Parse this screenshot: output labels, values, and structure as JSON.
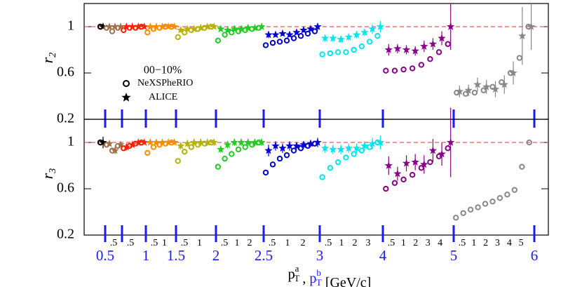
{
  "chart_data": [
    {
      "type": "scatter",
      "ylabel": {
        "base": "r",
        "sub": "2"
      },
      "ylim": [
        0.2,
        1.2
      ],
      "yticks": [
        0.2,
        0.6,
        1
      ],
      "reference_line": 1,
      "legend": {
        "title": "00−10%",
        "entries": [
          "NeXSPheRIO",
          "ALICE"
        ]
      },
      "groups": [
        {
          "color": "#000000",
          "nexspherio": [
            1.0
          ],
          "alice": [
            1.0
          ],
          "alice_errors": [
            0.01
          ]
        },
        {
          "color": "#a0704a",
          "nexspherio": [
            0.99,
            0.96,
            0.99
          ],
          "alice": [
            1.0,
            1.0,
            1.0
          ],
          "alice_errors": [
            0.01,
            0.01,
            0.01
          ]
        },
        {
          "color": "#ff2200",
          "nexspherio": [
            0.97,
            0.99,
            0.99,
            1.0
          ],
          "alice": [
            1.0,
            1.0,
            1.0,
            1.0
          ],
          "alice_errors": [
            0.02,
            0.01,
            0.01,
            0.01
          ]
        },
        {
          "color": "#ff8c00",
          "nexspherio": [
            0.95,
            0.98,
            0.99,
            1.0,
            1.0
          ],
          "alice": [
            1.0,
            1.0,
            1.0,
            1.0,
            1.0
          ],
          "alice_errors": [
            0.02,
            0.01,
            0.01,
            0.01,
            0.01
          ]
        },
        {
          "color": "#b3b300",
          "nexspherio": [
            0.91,
            0.95,
            0.97,
            0.98,
            0.99,
            1.0
          ],
          "alice": [
            0.97,
            0.98,
            0.98,
            0.99,
            1.0,
            1.0
          ],
          "alice_errors": [
            0.02,
            0.02,
            0.01,
            0.01,
            0.01,
            0.01
          ]
        },
        {
          "color": "#22cc22",
          "nexspherio": [
            0.88,
            0.93,
            0.95,
            0.96,
            0.97,
            0.98,
            0.99
          ],
          "alice": [
            0.98,
            0.97,
            0.98,
            0.98,
            0.99,
            0.99,
            1.0
          ],
          "alice_errors": [
            0.02,
            0.02,
            0.02,
            0.02,
            0.02,
            0.02,
            0.02
          ]
        },
        {
          "color": "#0000cc",
          "nexspherio": [
            0.84,
            0.86,
            0.87,
            0.88,
            0.9,
            0.92,
            0.94,
            0.96
          ],
          "alice": [
            0.93,
            0.93,
            0.94,
            0.93,
            0.95,
            0.97,
            0.98,
            1.0
          ],
          "alice_errors": [
            0.03,
            0.02,
            0.02,
            0.02,
            0.02,
            0.02,
            0.02,
            0.03
          ]
        },
        {
          "color": "#00e5ee",
          "nexspherio": [
            0.76,
            0.77,
            0.78,
            0.78,
            0.8,
            0.83,
            0.87,
            0.92
          ],
          "alice": [
            0.9,
            0.9,
            0.89,
            0.91,
            0.93,
            0.95,
            0.98,
            1.0
          ],
          "alice_errors": [
            0.03,
            0.03,
            0.03,
            0.03,
            0.03,
            0.03,
            0.04,
            0.05
          ]
        },
        {
          "color": "#880088",
          "nexspherio": [
            0.62,
            0.62,
            0.63,
            0.64,
            0.67,
            0.72,
            0.78,
            0.85
          ],
          "alice": [
            0.8,
            0.81,
            0.8,
            0.79,
            0.83,
            0.85,
            0.9,
            1.0
          ],
          "alice_errors": [
            0.05,
            0.04,
            0.04,
            0.04,
            0.05,
            0.05,
            0.06,
            0.2
          ]
        },
        {
          "color": "#888888",
          "nexspherio": [
            0.43,
            0.42,
            0.43,
            0.45,
            0.48,
            0.52,
            0.6,
            0.73,
            1.0
          ],
          "alice": [
            0.44,
            0.45,
            0.5,
            0.48,
            0.46,
            0.5,
            0.6,
            0.92,
            1.0
          ],
          "alice_errors": [
            0.05,
            0.05,
            0.06,
            0.06,
            0.07,
            0.08,
            0.1,
            0.25,
            0.2
          ]
        }
      ]
    },
    {
      "type": "scatter",
      "ylabel": {
        "base": "r",
        "sub": "3"
      },
      "ylim": [
        0.2,
        1.2
      ],
      "yticks": [
        0.2,
        0.6,
        1
      ],
      "reference_line": 1,
      "xticks": [
        0.5,
        {
          "value": 0.75,
          "label": null
        },
        1,
        1.5,
        2,
        2.5,
        3,
        4,
        5,
        6
      ],
      "sub_labels": [
        [],
        [
          ".5"
        ],
        [
          ".5"
        ],
        [
          ".5",
          "1"
        ],
        [
          ".5",
          "1"
        ],
        [
          ".5",
          "1",
          "2"
        ],
        [
          ".5",
          "1",
          "2"
        ],
        [
          ".5",
          "1",
          "2",
          "3"
        ],
        [
          ".5",
          "1",
          "2",
          "3",
          "4"
        ],
        [
          ".5",
          "1",
          "2",
          "3",
          "4",
          "5"
        ]
      ],
      "xlabel": {
        "a": {
          "base": "p",
          "sub": "T",
          "sup": "a"
        },
        "sep": ",",
        "b": {
          "base": "p",
          "sub": "T",
          "sup": "b"
        },
        "unit": "[GeV/c]"
      },
      "groups": [
        {
          "color": "#000000",
          "nexspherio": [
            1.0
          ],
          "alice": [
            1.0
          ],
          "alice_errors": [
            0.05
          ]
        },
        {
          "color": "#a0704a",
          "nexspherio": [
            0.98,
            0.93,
            0.97
          ],
          "alice": [
            0.99,
            0.93,
            0.98
          ],
          "alice_errors": [
            0.02,
            0.03,
            0.02
          ]
        },
        {
          "color": "#ff2200",
          "nexspherio": [
            0.95,
            0.97,
            0.99,
            1.0
          ],
          "alice": [
            0.96,
            0.98,
            1.0,
            1.0
          ],
          "alice_errors": [
            0.03,
            0.02,
            0.02,
            0.01
          ]
        },
        {
          "color": "#ff8c00",
          "nexspherio": [
            0.91,
            0.96,
            0.98,
            0.99,
            1.0
          ],
          "alice": [
            1.0,
            1.0,
            1.0,
            1.0,
            1.0
          ],
          "alice_errors": [
            0.02,
            0.02,
            0.02,
            0.02,
            0.02
          ]
        },
        {
          "color": "#b3b300",
          "nexspherio": [
            0.84,
            0.92,
            0.96,
            0.98,
            0.99,
            1.0
          ],
          "alice": [
            0.97,
            0.99,
            1.0,
            1.0,
            1.0,
            1.0
          ],
          "alice_errors": [
            0.03,
            0.03,
            0.03,
            0.03,
            0.03,
            0.03
          ]
        },
        {
          "color": "#22cc22",
          "nexspherio": [
            0.79,
            0.86,
            0.9,
            0.94,
            0.96,
            0.98,
            1.0
          ],
          "alice": [
            0.94,
            0.98,
            1.0,
            1.0,
            1.0,
            1.0,
            1.0
          ],
          "alice_errors": [
            0.03,
            0.03,
            0.03,
            0.03,
            0.03,
            0.03,
            0.03
          ]
        },
        {
          "color": "#0000cc",
          "nexspherio": [
            0.74,
            0.81,
            0.86,
            0.89,
            0.93,
            0.95,
            0.97,
            0.99
          ],
          "alice": [
            0.93,
            0.97,
            0.95,
            0.97,
            0.97,
            0.98,
            0.99,
            1.0
          ],
          "alice_errors": [
            0.05,
            0.04,
            0.04,
            0.04,
            0.03,
            0.03,
            0.03,
            0.04
          ]
        },
        {
          "color": "#00e5ee",
          "nexspherio": [
            0.7,
            0.78,
            0.83,
            0.87,
            0.9,
            0.93,
            0.96,
            1.0
          ],
          "alice": [
            0.95,
            0.94,
            0.94,
            0.95,
            0.95,
            0.97,
            0.99,
            1.0
          ],
          "alice_errors": [
            0.04,
            0.04,
            0.04,
            0.04,
            0.04,
            0.04,
            0.05,
            0.06
          ]
        },
        {
          "color": "#880088",
          "nexspherio": [
            0.6,
            0.65,
            0.68,
            0.72,
            0.78,
            0.83,
            0.88,
            0.95
          ],
          "alice": [
            0.8,
            0.73,
            0.82,
            0.83,
            0.81,
            0.93,
            0.9,
            1.0
          ],
          "alice_errors": [
            0.08,
            0.06,
            0.07,
            0.07,
            0.08,
            0.1,
            0.1,
            0.3
          ]
        },
        {
          "color": "#888888",
          "nexspherio": [
            0.35,
            0.39,
            0.42,
            0.44,
            0.47,
            0.49,
            0.52,
            0.55,
            0.59,
            0.79,
            1.0
          ],
          "alice": [
            null,
            null,
            null,
            null,
            null,
            null,
            null,
            null,
            null,
            null,
            null
          ],
          "alice_errors": [
            null,
            null,
            null,
            null,
            null,
            null,
            null,
            null,
            null,
            null,
            null
          ]
        }
      ]
    }
  ]
}
